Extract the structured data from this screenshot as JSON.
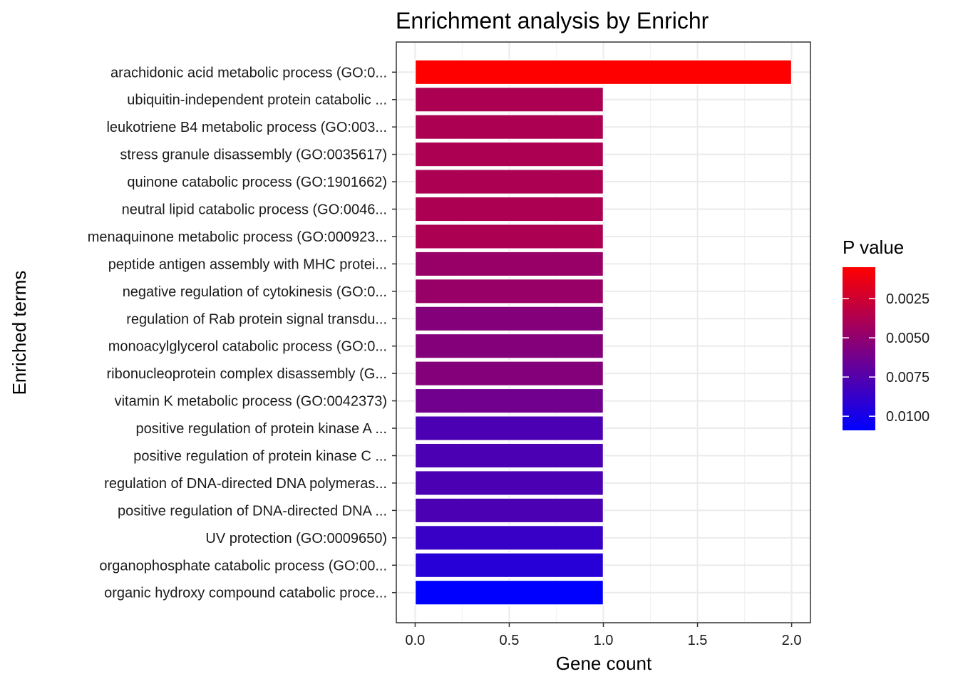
{
  "chart_data": {
    "type": "bar",
    "orientation": "horizontal",
    "title": "Enrichment analysis by Enrichr",
    "xlabel": "Gene count",
    "ylabel": "Enriched terms",
    "xlim": [
      -0.1,
      2.1
    ],
    "xticks": [
      0,
      0.5,
      1,
      1.5,
      2
    ],
    "xtick_labels": [
      "0.0",
      "0.5",
      "1.0",
      "1.5",
      "2.0"
    ],
    "grid": true,
    "categories": [
      "arachidonic acid metabolic process (GO:0...",
      "ubiquitin-independent protein catabolic ...",
      "leukotriene B4 metabolic process (GO:003...",
      "stress granule disassembly (GO:0035617)",
      "quinone catabolic process (GO:1901662)",
      "neutral lipid catabolic process (GO:0046...",
      "menaquinone metabolic process (GO:000923...",
      "peptide antigen assembly with MHC protei...",
      "negative regulation of cytokinesis (GO:0...",
      "regulation of Rab protein signal transdu...",
      "monoacylglycerol catabolic process (GO:0...",
      "ribonucleoprotein complex disassembly (G...",
      "vitamin K metabolic process (GO:0042373)",
      "positive regulation of protein kinase A ...",
      "positive regulation of protein kinase C ...",
      "regulation of DNA-directed DNA polymeras...",
      "positive regulation of DNA-directed DNA ...",
      "UV protection (GO:0009650)",
      "organophosphate catabolic process (GO:00...",
      "organic hydroxy compound catabolic proce..."
    ],
    "values": [
      2,
      1,
      1,
      1,
      1,
      1,
      1,
      1,
      1,
      1,
      1,
      1,
      1,
      1,
      1,
      1,
      1,
      1,
      1,
      1
    ],
    "p_values": [
      0.0005,
      0.0039,
      0.0039,
      0.0039,
      0.0039,
      0.0039,
      0.0039,
      0.0047,
      0.0047,
      0.0055,
      0.0055,
      0.0055,
      0.0063,
      0.0078,
      0.0078,
      0.0078,
      0.0078,
      0.0086,
      0.0093,
      0.0109
    ],
    "legend": {
      "title": "P value",
      "placement": "right",
      "low_color": "#ff0000",
      "high_color": "#0000ff",
      "range": [
        0.0005,
        0.0109
      ],
      "ticks": [
        0.0025,
        0.005,
        0.0075,
        0.01
      ],
      "tick_labels": [
        "0.0025",
        "0.0050",
        "0.0075",
        "0.0100"
      ]
    },
    "colors": {
      "panel_border": "#333333",
      "grid_major": "#ebebeb",
      "grid_minor": "#f2f2f2",
      "bar_outline": "#ffffff"
    }
  }
}
